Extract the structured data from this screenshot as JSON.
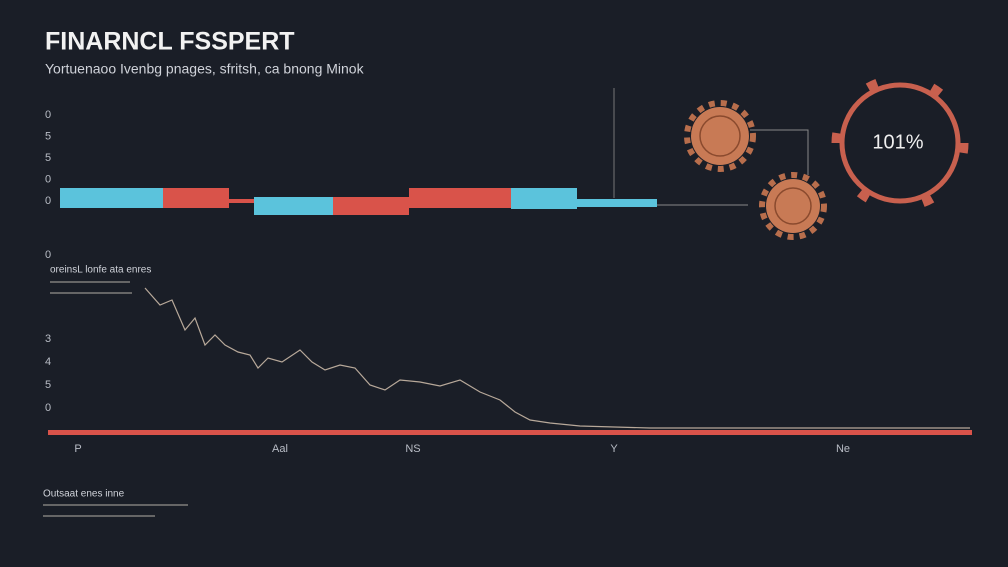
{
  "header": {
    "title": "FINARNCL FSSPERT",
    "subtitle": "Yortuenaoo Ivenbg pnages, sfritsh, ca bnong Minok"
  },
  "top_panel": {
    "axis_labels": [
      "0",
      "5",
      "5",
      "0",
      "0"
    ]
  },
  "gauge": {
    "label": "101%"
  },
  "lower_panel": {
    "label": "0",
    "heading": "oreinsL lonfe ata enres",
    "axis_labels": [
      "3",
      "4",
      "5",
      "0"
    ],
    "x_labels": [
      "P",
      "Aal",
      "NS",
      "Y",
      "Ne"
    ]
  },
  "footer": {
    "heading": "Outsaat enes inne"
  }
}
